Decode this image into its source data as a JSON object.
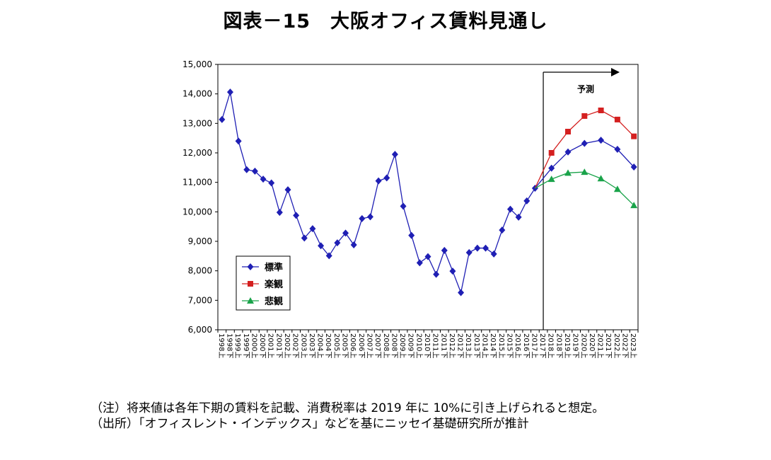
{
  "title": "図表－15　大阪オフィス賃料見通し",
  "chart_data": {
    "type": "line",
    "title": "図表－15　大阪オフィス賃料見通し",
    "ylim": [
      6000,
      15000
    ],
    "y_ticks": [
      "15,000",
      "14,000",
      "13,000",
      "12,000",
      "11,000",
      "10,000",
      "9,000",
      "8,000",
      "7,000",
      "6,000"
    ],
    "x": [
      "1998上",
      "1998下",
      "1999上",
      "1999下",
      "2000上",
      "2000下",
      "2001上",
      "2001下",
      "2002上",
      "2002下",
      "2003上",
      "2003下",
      "2004上",
      "2004下",
      "2005上",
      "2005下",
      "2006上",
      "2006下",
      "2007上",
      "2007下",
      "2008上",
      "2008下",
      "2009上",
      "2009下",
      "2010上",
      "2010下",
      "2011上",
      "2011下",
      "2012上",
      "2012下",
      "2013上",
      "2013下",
      "2014上",
      "2014下",
      "2015上",
      "2015下",
      "2016上",
      "2016下",
      "2017上",
      "2017下",
      "2018上",
      "2018下",
      "2019上",
      "2019下",
      "2020上",
      "2020下",
      "2021上",
      "2021下",
      "2022上",
      "2022下",
      "2023上"
    ],
    "x_tick_labels": [
      "1998上",
      "1998下",
      "1999上",
      "1999下",
      "2000上",
      "2000下",
      "2001上",
      "2001下",
      "2002上",
      "2002下",
      "2003上",
      "2003下",
      "2004上",
      "2004下",
      "2005上",
      "2005下",
      "2006上",
      "2006下",
      "2007上",
      "2007下",
      "2008上",
      "2008下",
      "2009上",
      "2009下",
      "2010上",
      "2010下",
      "2011上",
      "2011下",
      "2012上",
      "2012下",
      "2013上",
      "2013下",
      "2014上",
      "2014下",
      "2015上",
      "2015下",
      "2016上",
      "2016下",
      "2017上",
      "2017下",
      "2018上",
      "2018下",
      "2019上",
      "2019下",
      "2020上",
      "2020下",
      "2021上",
      "2021下",
      "2022上",
      "2022下",
      "2023上"
    ],
    "series": [
      {
        "name": "標準",
        "color": "#1f1fb4",
        "marker": "diamond",
        "points": [
          [
            "1998上",
            13130
          ],
          [
            "1998下",
            14060
          ],
          [
            "1999上",
            12400
          ],
          [
            "1999下",
            11430
          ],
          [
            "2000上",
            11380
          ],
          [
            "2000下",
            11110
          ],
          [
            "2001上",
            10980
          ],
          [
            "2001下",
            9980
          ],
          [
            "2002上",
            10750
          ],
          [
            "2002下",
            9880
          ],
          [
            "2003上",
            9110
          ],
          [
            "2003下",
            9430
          ],
          [
            "2004上",
            8850
          ],
          [
            "2004下",
            8510
          ],
          [
            "2005上",
            8950
          ],
          [
            "2005下",
            9280
          ],
          [
            "2006上",
            8880
          ],
          [
            "2006下",
            9770
          ],
          [
            "2007上",
            9830
          ],
          [
            "2007下",
            11050
          ],
          [
            "2008上",
            11150
          ],
          [
            "2008下",
            11950
          ],
          [
            "2009上",
            10190
          ],
          [
            "2009下",
            9200
          ],
          [
            "2010上",
            8270
          ],
          [
            "2010下",
            8480
          ],
          [
            "2011上",
            7880
          ],
          [
            "2011下",
            8690
          ],
          [
            "2012上",
            7990
          ],
          [
            "2012下",
            7260
          ],
          [
            "2013上",
            8620
          ],
          [
            "2013下",
            8770
          ],
          [
            "2014上",
            8770
          ],
          [
            "2014下",
            8570
          ],
          [
            "2015上",
            9380
          ],
          [
            "2015下",
            10090
          ],
          [
            "2016上",
            9820
          ],
          [
            "2016下",
            10370
          ],
          [
            "2017上",
            10800
          ],
          [
            "2018上",
            11480
          ],
          [
            "2019上",
            12030
          ],
          [
            "2020上",
            12320
          ],
          [
            "2021上",
            12430
          ],
          [
            "2022上",
            12120
          ],
          [
            "2023上",
            11520
          ]
        ]
      },
      {
        "name": "楽観",
        "color": "#d42020",
        "marker": "square",
        "points": [
          [
            "1998上",
            null
          ],
          [
            "2018上",
            12000
          ],
          [
            "2019上",
            12720
          ],
          [
            "2020上",
            13250
          ],
          [
            "2021上",
            13440
          ],
          [
            "2022上",
            13130
          ],
          [
            "2023上",
            12560
          ]
        ]
      },
      {
        "name": "悲観",
        "color": "#1aa34a",
        "marker": "triangle",
        "points": [
          [
            "2018上",
            11110
          ],
          [
            "2019上",
            11320
          ],
          [
            "2020上",
            11350
          ],
          [
            "2021上",
            11130
          ],
          [
            "2022上",
            10770
          ],
          [
            "2023上",
            10220
          ]
        ]
      }
    ],
    "series_start": [
      "2017上",
      10800
    ],
    "annotation": "予測",
    "forecast_start": "2017下",
    "legend_position": "lower-left (inside plot)",
    "grid": false
  },
  "notes": [
    "（注）将来値は各年下期の賃料を記載、消費税率は 2019 年に 10%に引き上げられると想定。",
    "（出所）「オフィスレント・インデックス」などを基にニッセイ基礎研究所が推計"
  ]
}
